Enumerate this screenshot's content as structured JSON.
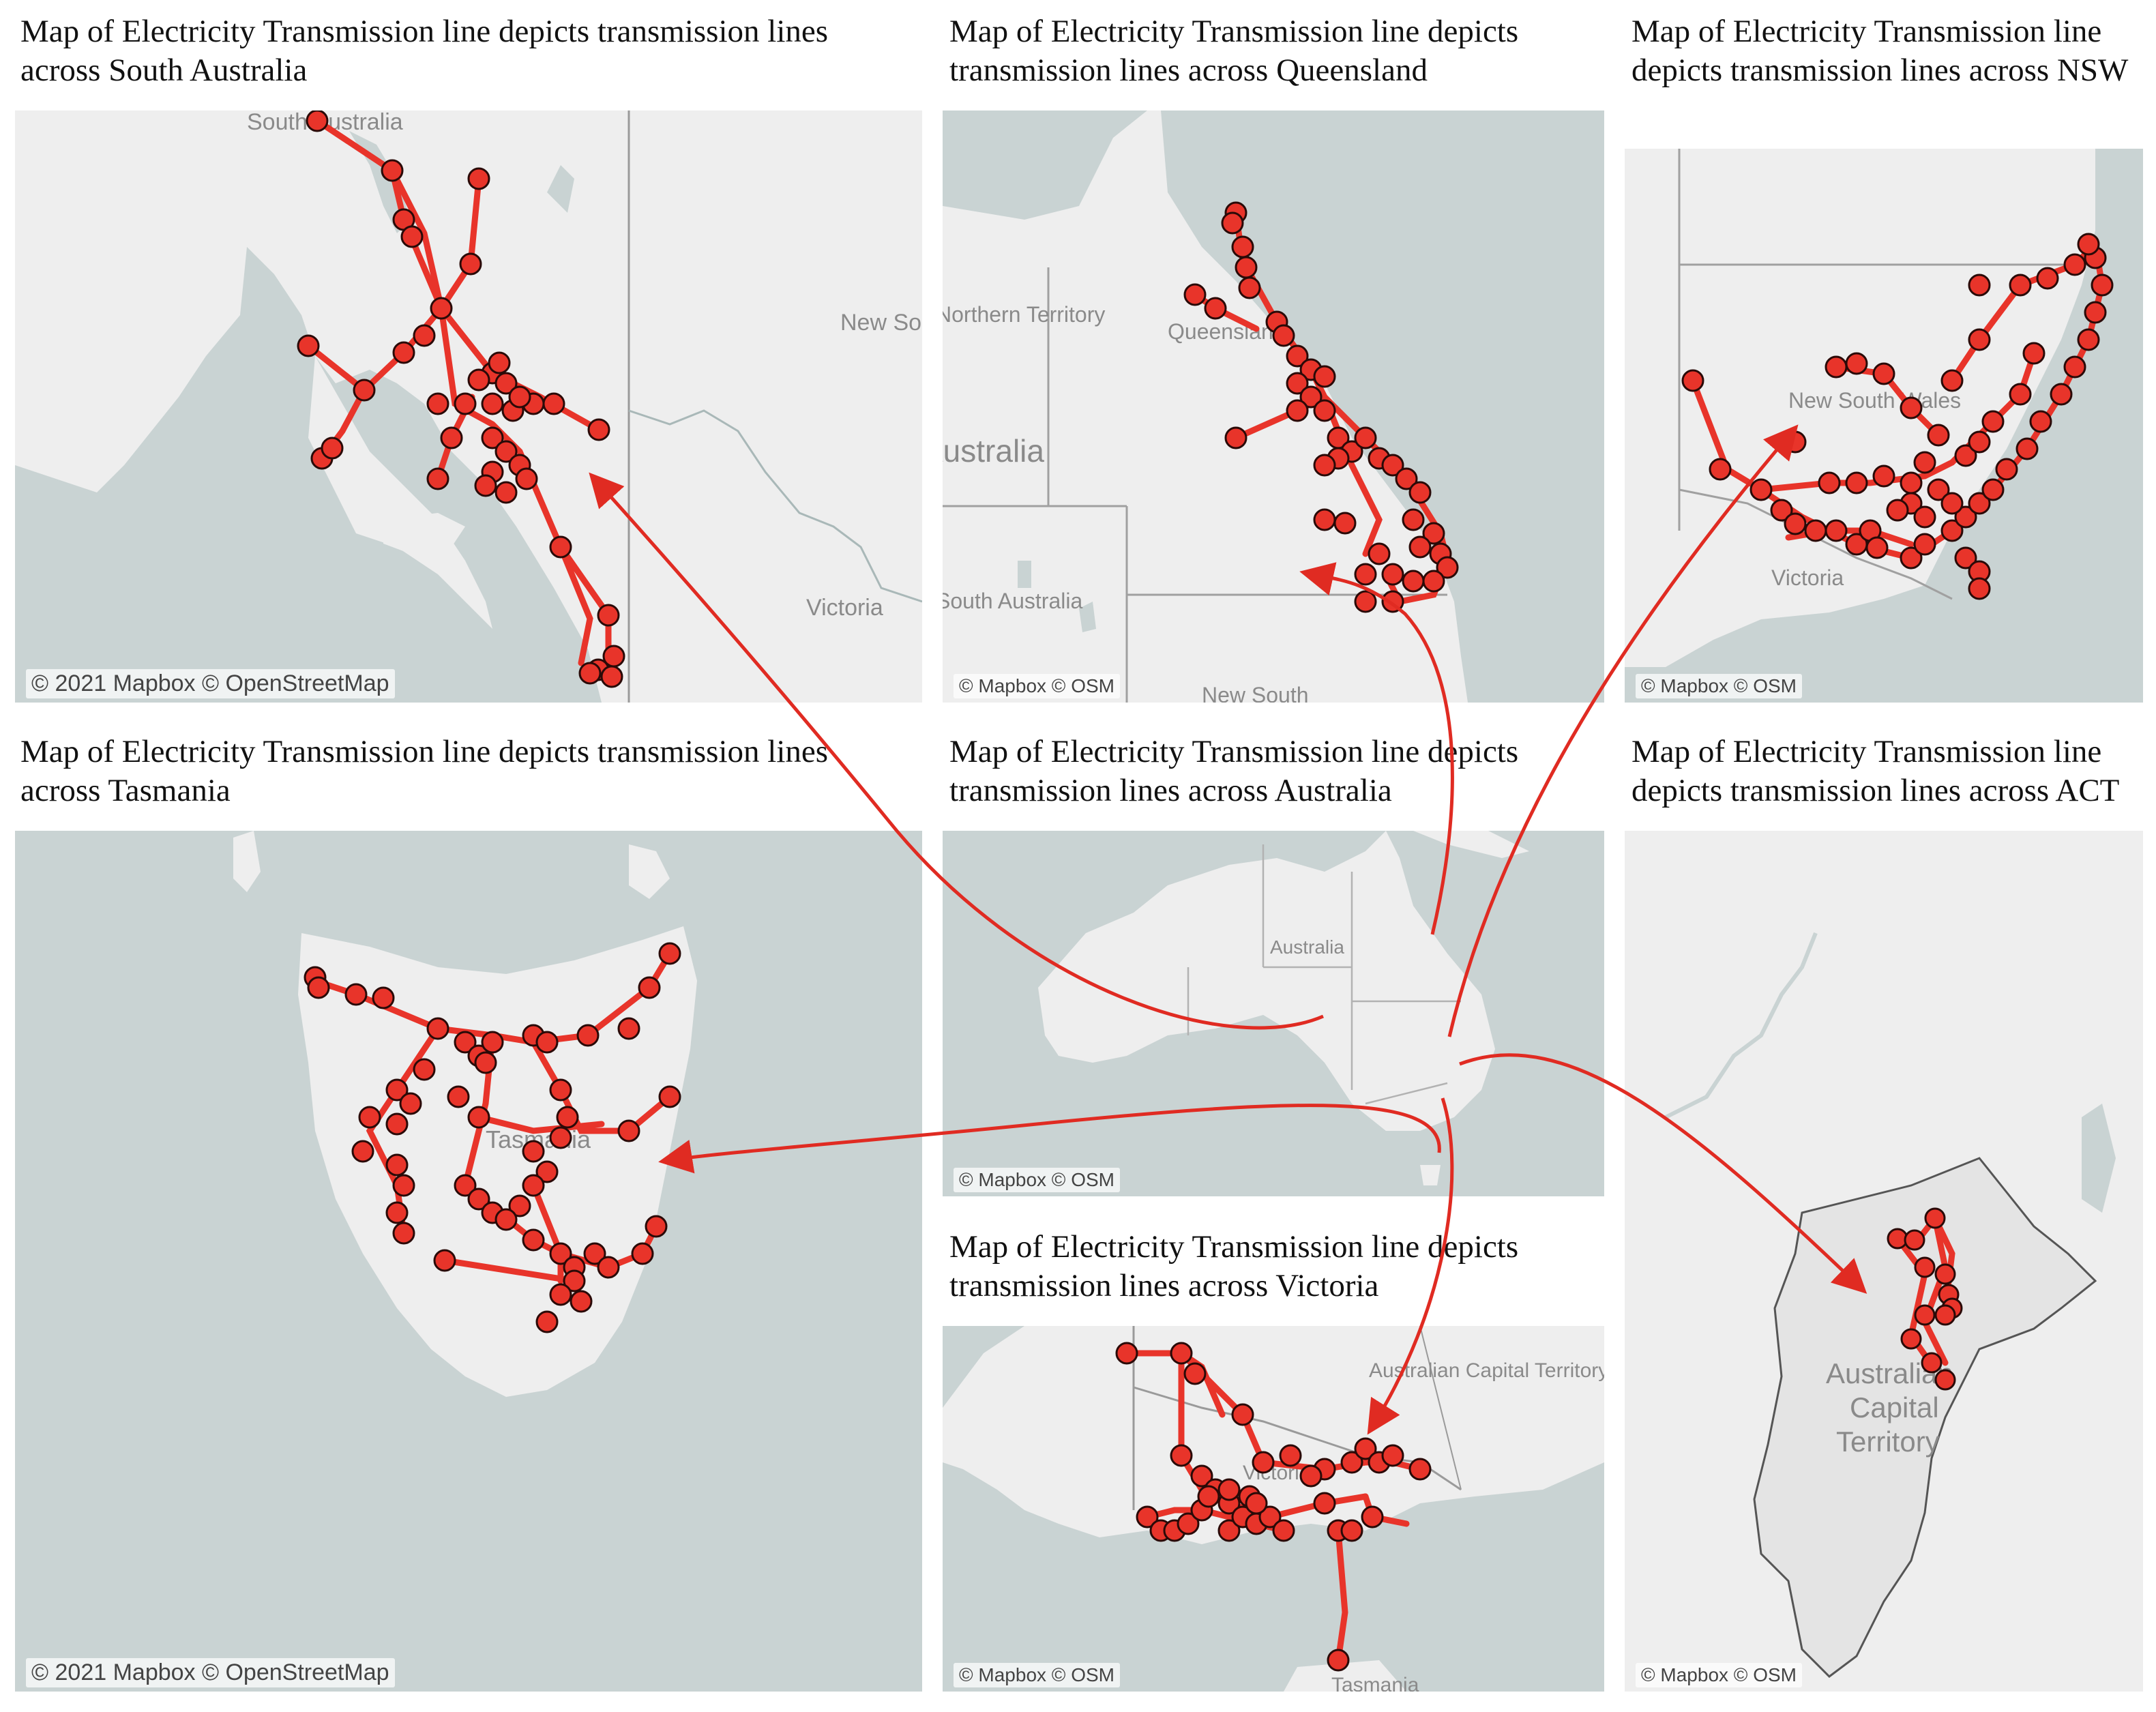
{
  "panels": {
    "sa": {
      "caption": "Map of Electricity Transmission line depicts transmission lines across South Australia",
      "attribution": "© 2021 Mapbox © OpenStreetMap",
      "labels": {
        "region": "South Australia",
        "nsw": "New South Wales",
        "vic": "Victoria"
      }
    },
    "qld": {
      "caption": "Map of Electricity Transmission line depicts transmission lines across Queensland",
      "attribution": "© Mapbox © OSM",
      "labels": {
        "qld": "Queensland",
        "nt": "Northern Territory",
        "aus": "Australia",
        "sa": "South Australia",
        "nsw": "New South"
      }
    },
    "nsw": {
      "caption": "Map of Electricity Transmission line depicts transmission lines across NSW",
      "attribution": "© Mapbox © OSM",
      "labels": {
        "nsw": "New South Wales",
        "vic": "Victoria"
      }
    },
    "tas": {
      "caption": "Map of Electricity Transmission line depicts transmission lines across Tasmania",
      "attribution": "© 2021 Mapbox © OpenStreetMap",
      "labels": {
        "tas": "Tasmania"
      }
    },
    "aus": {
      "caption": "Map of Electricity Transmission line depicts transmission lines across Australia",
      "attribution": "© Mapbox © OSM",
      "labels": {
        "aus": "Australia"
      }
    },
    "act": {
      "caption": "Map of Electricity Transmission line depicts transmission lines across ACT",
      "attribution": "© Mapbox © OSM",
      "labels": {
        "act1": "Australian",
        "act2": "Capital",
        "act3": "Territory"
      }
    },
    "vic": {
      "caption": "Map of Electricity Transmission line depicts transmission lines across Victoria",
      "attribution": "© Mapbox © OSM",
      "labels": {
        "act": "Australian Capital Territory",
        "vic": "Victoria",
        "tas": "Tasmania"
      }
    }
  },
  "colors": {
    "ocean": "#c9d3d3",
    "land": "#eeeeee",
    "line": "#e8342a",
    "node": "#e8342a",
    "node_outline": "#2a0a08",
    "arrow": "#e02b22"
  }
}
